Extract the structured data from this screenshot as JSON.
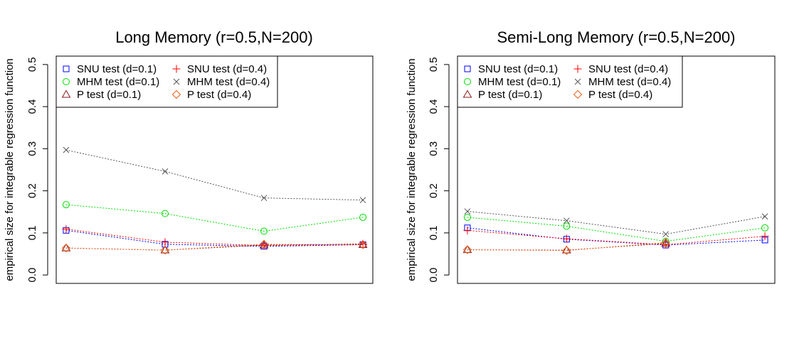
{
  "chart_data": [
    {
      "type": "line",
      "title": "Long Memory (r=0.5,N=200)",
      "xlabel": "",
      "ylabel": "empirical size for integrable regression function",
      "x": [
        1,
        2,
        3,
        4
      ],
      "xlim": [
        0.9,
        4.1
      ],
      "ylim": [
        -0.02,
        0.52
      ],
      "yticks": [
        "0.0",
        "0.1",
        "0.2",
        "0.3",
        "0.4",
        "0.5"
      ],
      "grid": false,
      "legend_position": "top-left",
      "series": [
        {
          "name": "SNU test (d=0.1)",
          "marker": "square",
          "color": "#0000ff",
          "values": [
            0.106,
            0.073,
            0.068,
            0.072
          ]
        },
        {
          "name": "MHM test (d=0.1)",
          "marker": "circle",
          "color": "#00dd00",
          "values": [
            0.167,
            0.146,
            0.104,
            0.137
          ]
        },
        {
          "name": "P test (d=0.1)",
          "marker": "triangle",
          "color": "#8b1a1a",
          "values": [
            0.064,
            0.059,
            0.071,
            0.072
          ]
        },
        {
          "name": "SNU test (d=0.4)",
          "marker": "plus",
          "color": "#ff0000",
          "values": [
            0.109,
            0.078,
            0.07,
            0.074
          ]
        },
        {
          "name": "MHM test (d=0.4)",
          "marker": "cross",
          "color": "#555555",
          "values": [
            0.297,
            0.246,
            0.183,
            0.178
          ]
        },
        {
          "name": "P test (d=0.4)",
          "marker": "diamond",
          "color": "#e8601c",
          "values": [
            0.064,
            0.059,
            0.073,
            0.072
          ]
        }
      ]
    },
    {
      "type": "line",
      "title": "Semi-Long Memory (r=0.5,N=200)",
      "xlabel": "",
      "ylabel": "empirical size for integrable regression function",
      "x": [
        1,
        2,
        3,
        4
      ],
      "xlim": [
        0.9,
        4.1
      ],
      "ylim": [
        -0.02,
        0.52
      ],
      "yticks": [
        "0.0",
        "0.1",
        "0.2",
        "0.3",
        "0.4",
        "0.5"
      ],
      "grid": false,
      "legend_position": "top-left",
      "series": [
        {
          "name": "SNU test (d=0.1)",
          "marker": "square",
          "color": "#0000ff",
          "values": [
            0.112,
            0.085,
            0.071,
            0.083
          ]
        },
        {
          "name": "MHM test (d=0.1)",
          "marker": "circle",
          "color": "#00dd00",
          "values": [
            0.137,
            0.116,
            0.08,
            0.112
          ]
        },
        {
          "name": "P test (d=0.1)",
          "marker": "triangle",
          "color": "#8b1a1a",
          "values": [
            0.06,
            0.059,
            0.075,
            null
          ]
        },
        {
          "name": "SNU test (d=0.4)",
          "marker": "plus",
          "color": "#ff0000",
          "values": [
            0.106,
            0.086,
            0.072,
            0.092
          ]
        },
        {
          "name": "MHM test (d=0.4)",
          "marker": "cross",
          "color": "#555555",
          "values": [
            0.151,
            0.129,
            0.097,
            0.139
          ]
        },
        {
          "name": "P test (d=0.4)",
          "marker": "diamond",
          "color": "#e8601c",
          "values": [
            0.06,
            0.058,
            0.077,
            null
          ]
        }
      ]
    }
  ]
}
